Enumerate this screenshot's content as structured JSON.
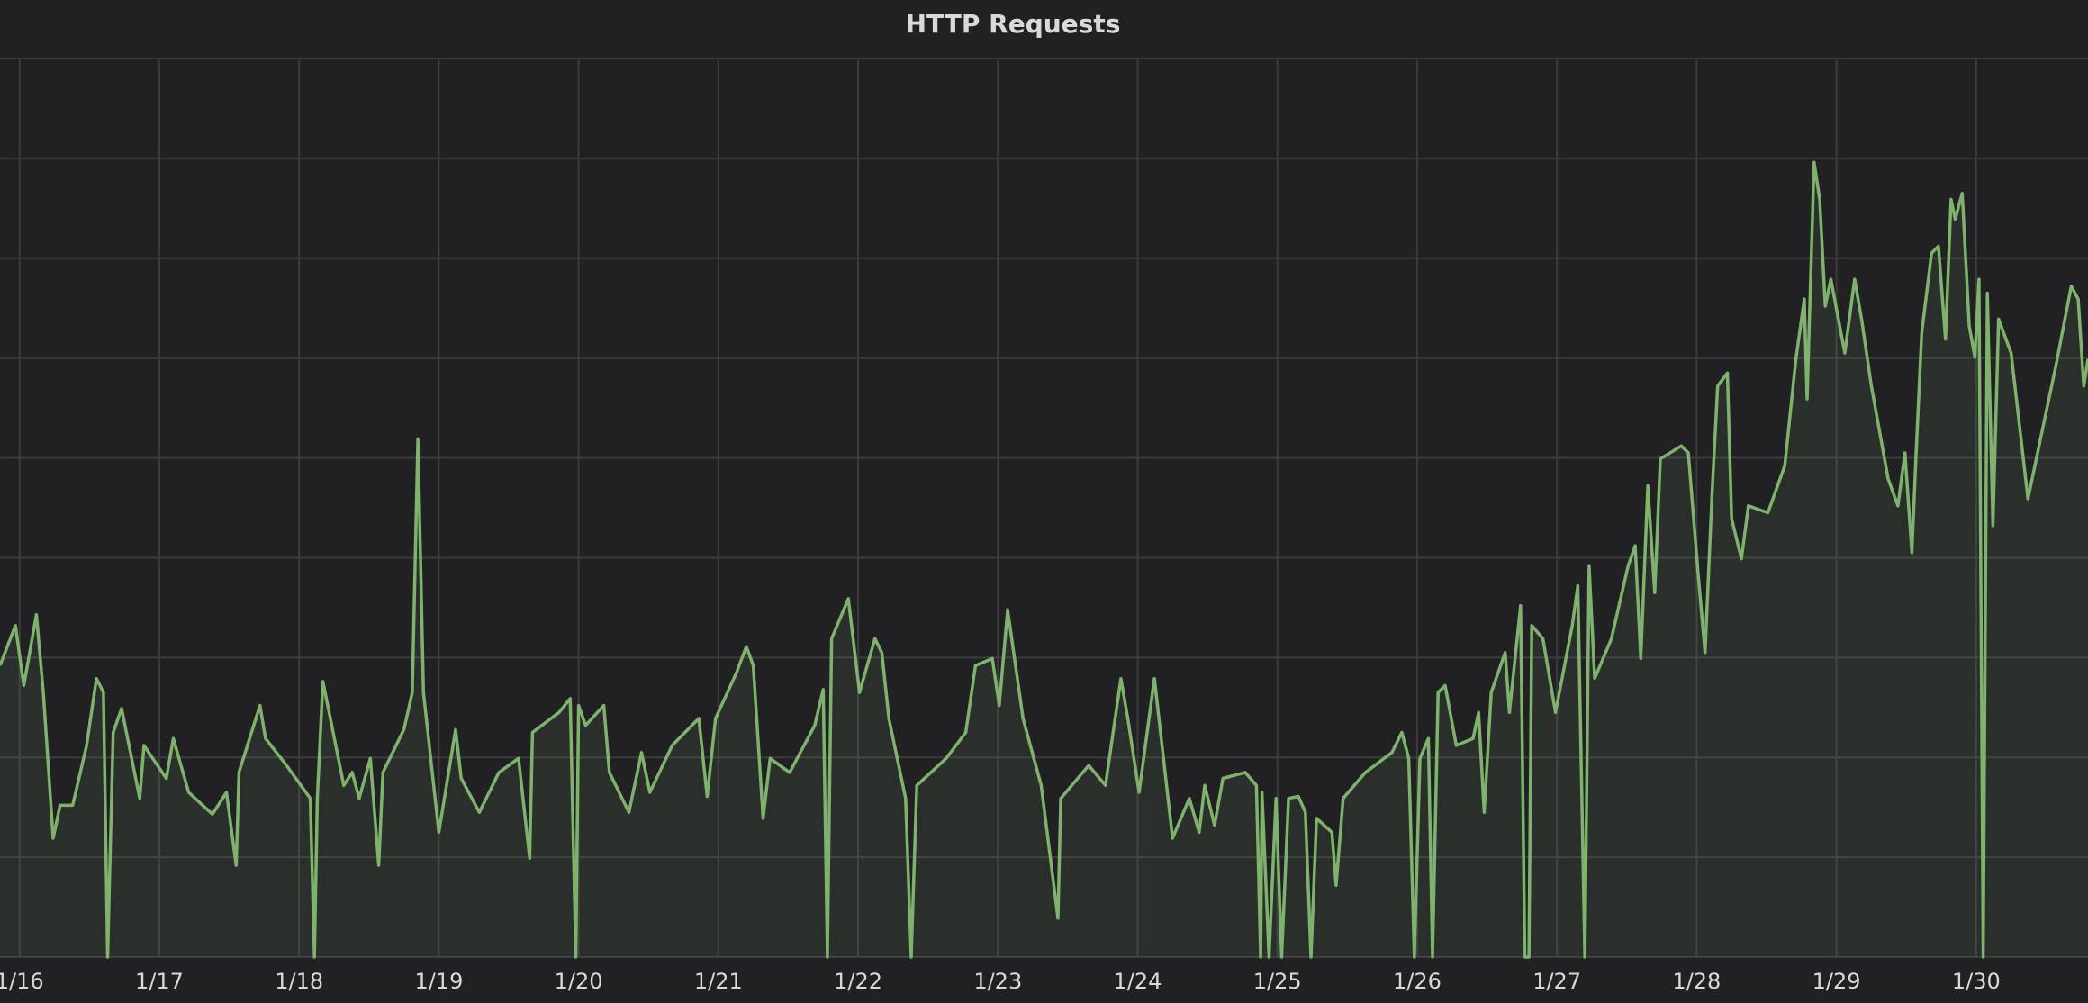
{
  "chart_data": {
    "type": "line",
    "title": "HTTP Requests",
    "color": "#7eb26d",
    "area": true,
    "xlim": [
      -0.14,
      14.8
    ],
    "ylim": [
      0,
      9
    ],
    "xticks": [
      {
        "value": 0,
        "label": "1/16"
      },
      {
        "value": 1,
        "label": "1/17"
      },
      {
        "value": 2,
        "label": "1/18"
      },
      {
        "value": 3,
        "label": "1/19"
      },
      {
        "value": 4,
        "label": "1/20"
      },
      {
        "value": 5,
        "label": "1/21"
      },
      {
        "value": 6,
        "label": "1/22"
      },
      {
        "value": 7,
        "label": "1/23"
      },
      {
        "value": 8,
        "label": "1/24"
      },
      {
        "value": 9,
        "label": "1/25"
      },
      {
        "value": 10,
        "label": "1/26"
      },
      {
        "value": 11,
        "label": "1/27"
      },
      {
        "value": 12,
        "label": "1/28"
      },
      {
        "value": 13,
        "label": "1/29"
      },
      {
        "value": 14,
        "label": "1/30"
      }
    ],
    "ygrid": [
      0,
      1,
      2,
      3,
      4,
      5,
      6,
      7,
      8,
      9
    ],
    "x": [
      -0.14,
      -0.03,
      0.03,
      0.12,
      0.17,
      0.24,
      0.29,
      0.38,
      0.48,
      0.55,
      0.6,
      0.63,
      0.67,
      0.73,
      0.86,
      0.89,
      1.05,
      1.1,
      1.21,
      1.38,
      1.48,
      1.55,
      1.57,
      1.72,
      1.76,
      1.91,
      2.08,
      2.11,
      2.13,
      2.17,
      2.32,
      2.38,
      2.43,
      2.51,
      2.57,
      2.6,
      2.75,
      2.81,
      2.85,
      2.89,
      3.0,
      3.12,
      3.16,
      3.29,
      3.43,
      3.57,
      3.65,
      3.67,
      3.86,
      3.94,
      3.98,
      4.0,
      4.05,
      4.18,
      4.22,
      4.36,
      4.45,
      4.51,
      4.67,
      4.86,
      4.92,
      4.98,
      5.13,
      5.2,
      5.25,
      5.32,
      5.37,
      5.51,
      5.69,
      5.75,
      5.78,
      5.81,
      5.93,
      6.01,
      6.12,
      6.17,
      6.22,
      6.34,
      6.38,
      6.42,
      6.63,
      6.77,
      6.84,
      6.96,
      7.01,
      7.07,
      7.18,
      7.31,
      7.43,
      7.45,
      7.65,
      7.77,
      7.88,
      7.93,
      8.01,
      8.12,
      8.25,
      8.37,
      8.44,
      8.48,
      8.55,
      8.61,
      8.77,
      8.85,
      8.88,
      8.89,
      8.94,
      8.99,
      9.03,
      9.08,
      9.15,
      9.2,
      9.24,
      9.28,
      9.39,
      9.42,
      9.47,
      9.63,
      9.82,
      9.89,
      9.94,
      9.98,
      10.02,
      10.08,
      10.11,
      10.15,
      10.2,
      10.28,
      10.4,
      10.44,
      10.48,
      10.53,
      10.63,
      10.66,
      10.74,
      10.77,
      10.8,
      10.82,
      10.9,
      10.99,
      11.11,
      11.15,
      11.2,
      11.23,
      11.27,
      11.39,
      11.51,
      11.56,
      11.6,
      11.65,
      11.7,
      11.74,
      11.89,
      11.94,
      12.01,
      12.06,
      12.11,
      12.15,
      12.22,
      12.25,
      12.32,
      12.37,
      12.51,
      12.63,
      12.71,
      12.77,
      12.79,
      12.84,
      12.88,
      12.92,
      12.96,
      13.06,
      13.13,
      13.18,
      13.25,
      13.37,
      13.44,
      13.49,
      13.54,
      13.57,
      13.61,
      13.68,
      13.73,
      13.78,
      13.82,
      13.85,
      13.9,
      13.95,
      13.99,
      14.02,
      14.05,
      14.08,
      14.12,
      14.16,
      14.25,
      14.37,
      14.49,
      14.57,
      14.68,
      14.73,
      14.77,
      14.8
    ],
    "values": [
      2.92,
      3.32,
      2.72,
      3.43,
      2.65,
      1.19,
      1.52,
      1.52,
      2.12,
      2.79,
      2.65,
      0,
      2.25,
      2.49,
      1.59,
      2.12,
      1.79,
      2.19,
      1.65,
      1.43,
      1.65,
      0.92,
      1.85,
      2.52,
      2.19,
      1.92,
      1.59,
      0,
      1.59,
      2.76,
      1.72,
      1.85,
      1.59,
      1.99,
      0.92,
      1.85,
      2.28,
      2.65,
      5.19,
      2.65,
      1.25,
      2.28,
      1.79,
      1.45,
      1.85,
      1.99,
      0.99,
      2.25,
      2.45,
      2.59,
      0,
      2.52,
      2.32,
      2.52,
      1.85,
      1.45,
      2.05,
      1.65,
      2.12,
      2.39,
      1.61,
      2.39,
      2.85,
      3.11,
      2.92,
      1.39,
      1.99,
      1.85,
      2.32,
      2.68,
      0,
      3.19,
      3.59,
      2.65,
      3.19,
      3.05,
      2.39,
      1.59,
      0,
      1.72,
      1.99,
      2.25,
      2.92,
      2.99,
      2.52,
      3.48,
      2.39,
      1.72,
      0.39,
      1.59,
      1.92,
      1.72,
      2.79,
      2.39,
      1.65,
      2.79,
      1.19,
      1.59,
      1.25,
      1.72,
      1.32,
      1.79,
      1.85,
      1.72,
      0,
      1.65,
      0,
      1.59,
      0,
      1.59,
      1.61,
      1.45,
      0,
      1.39,
      1.25,
      0.72,
      1.59,
      1.85,
      2.05,
      2.25,
      1.99,
      0,
      1.99,
      2.19,
      0,
      2.65,
      2.72,
      2.12,
      2.19,
      2.45,
      1.45,
      2.65,
      3.05,
      2.45,
      3.52,
      0,
      0,
      3.32,
      3.19,
      2.45,
      3.32,
      3.72,
      0,
      3.92,
      2.79,
      3.19,
      3.92,
      4.12,
      2.99,
      4.72,
      3.65,
      4.99,
      5.12,
      5.05,
      3.85,
      3.05,
      4.65,
      5.72,
      5.85,
      4.39,
      3.99,
      4.52,
      4.45,
      4.92,
      5.99,
      6.59,
      5.59,
      7.96,
      7.59,
      6.52,
      6.79,
      6.05,
      6.79,
      6.39,
      5.72,
      4.79,
      4.52,
      5.05,
      4.05,
      5.05,
      6.25,
      7.05,
      7.12,
      6.19,
      7.59,
      7.39,
      7.65,
      6.32,
      6.01,
      6.79,
      0,
      6.65,
      4.32,
      6.39,
      6.05,
      4.59,
      5.39,
      5.92,
      6.72,
      6.59,
      5.72,
      5.99
    ]
  }
}
